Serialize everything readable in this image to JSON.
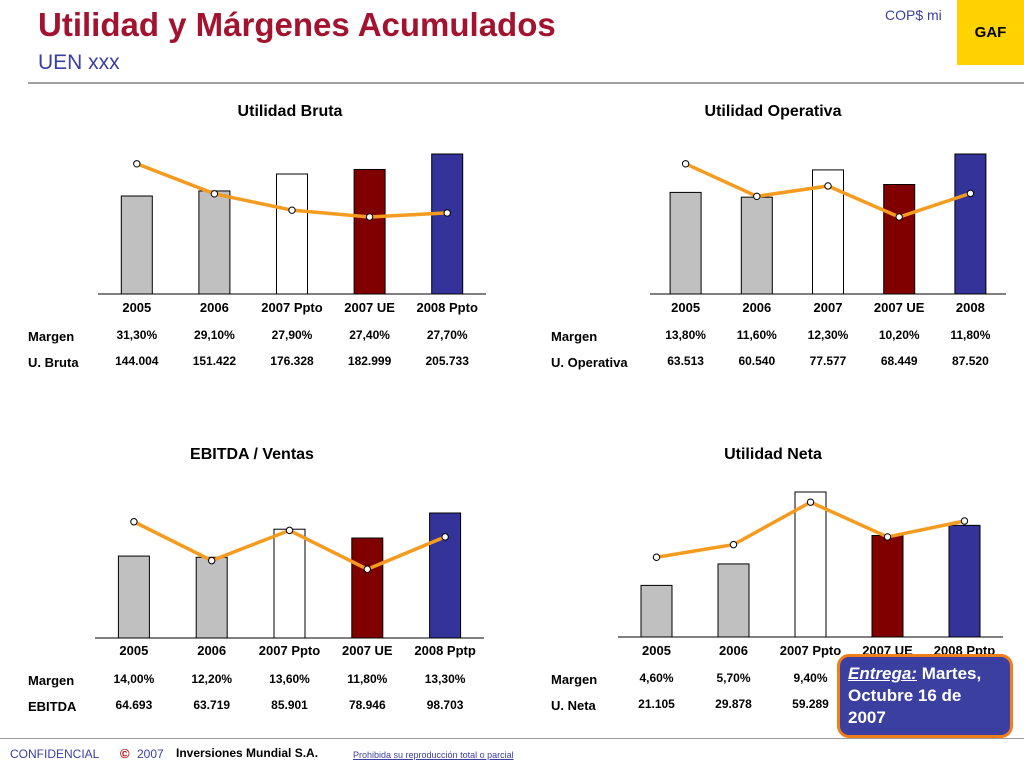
{
  "header": {
    "title": "Utilidad y Márgenes Acumulados",
    "subtitle": "UEN xxx",
    "units": "COP$ mi",
    "badge": "GAF"
  },
  "colors": {
    "gray_bar": "#c0c0c0",
    "white_bar": "#ffffff",
    "red_bar": "#800000",
    "blue_bar": "#333399",
    "line": "#f59b1f",
    "title": "#a3132f",
    "accent": "#3b3fa0"
  },
  "chart_data": [
    {
      "type": "bar",
      "title": "Utilidad Bruta",
      "categories": [
        "2005",
        "2006",
        "2007 Ppto",
        "2007 UE",
        "2008 Ppto"
      ],
      "bar_colors": [
        "#c0c0c0",
        "#c0c0c0",
        "#ffffff",
        "#800000",
        "#333399"
      ],
      "series": [
        {
          "values": [
            31.3,
            29.1,
            27.9,
            27.4,
            27.7
          ]
        },
        {
          "values": [
            144.004,
            151.422,
            176.328,
            182.999,
            205.733
          ]
        }
      ],
      "table": [
        {
          "label": "Margen",
          "values": [
            "31,30%",
            "29,10%",
            "27,90%",
            "27,40%",
            "27,70%"
          ]
        },
        {
          "label": "U. Bruta",
          "values": [
            "144.004",
            "151.422",
            "176.328",
            "182.999",
            "205.733"
          ]
        }
      ]
    },
    {
      "type": "bar",
      "title": "Utilidad Operativa",
      "categories": [
        "2005",
        "2006",
        "2007",
        "2007 UE",
        "2008"
      ],
      "bar_colors": [
        "#c0c0c0",
        "#c0c0c0",
        "#ffffff",
        "#800000",
        "#333399"
      ],
      "series": [
        {
          "values": [
            13.8,
            11.6,
            12.3,
            10.2,
            11.8
          ]
        },
        {
          "values": [
            63.513,
            60.54,
            77.577,
            68.449,
            87.52
          ]
        }
      ],
      "table": [
        {
          "label": "Margen",
          "values": [
            "13,80%",
            "11,60%",
            "12,30%",
            "10,20%",
            "11,80%"
          ]
        },
        {
          "label": "U. Operativa",
          "values": [
            "63.513",
            "60.540",
            "77.577",
            "68.449",
            "87.520"
          ]
        }
      ]
    },
    {
      "type": "bar",
      "title": "EBITDA / Ventas",
      "categories": [
        "2005",
        "2006",
        "2007 Ppto",
        "2007 UE",
        "2008 Pptp"
      ],
      "bar_colors": [
        "#c0c0c0",
        "#c0c0c0",
        "#ffffff",
        "#800000",
        "#333399"
      ],
      "series": [
        {
          "values": [
            14.0,
            12.2,
            13.6,
            11.8,
            13.3
          ]
        },
        {
          "values": [
            64.693,
            63.719,
            85.901,
            78.946,
            98.703
          ]
        }
      ],
      "table": [
        {
          "label": "Margen",
          "values": [
            "14,00%",
            "12,20%",
            "13,60%",
            "11,80%",
            "13,30%"
          ]
        },
        {
          "label": "EBITDA",
          "values": [
            "64.693",
            "63.719",
            "85.901",
            "78.946",
            "98.703"
          ]
        }
      ]
    },
    {
      "type": "bar",
      "title": "Utilidad Neta",
      "categories": [
        "2005",
        "2006",
        "2007 Ppto",
        "2007 UE",
        "2008 Pptp"
      ],
      "bar_colors": [
        "#c0c0c0",
        "#c0c0c0",
        "#ffffff",
        "#800000",
        "#333399"
      ],
      "series": [
        {
          "values": [
            4.6,
            5.7,
            9.4,
            null,
            null
          ]
        },
        {
          "values": [
            21.105,
            29.878,
            59.289,
            null,
            null
          ]
        }
      ],
      "table": [
        {
          "label": "Margen",
          "values": [
            "4,60%",
            "5,70%",
            "9,40%",
            "",
            ""
          ]
        },
        {
          "label": "U. Neta",
          "values": [
            "21.105",
            "29.878",
            "59.289",
            "",
            ""
          ]
        }
      ]
    }
  ],
  "callout": {
    "label": "Entrega:",
    "text": "Martes, Octubre 16 de 2007"
  },
  "footer": {
    "confidential": "CONFIDENCIAL",
    "copyright_symbol": "©",
    "year": "2007",
    "company": "Inversiones Mundial S.A.",
    "notice": "Prohibida su reproducción total o parcial"
  }
}
